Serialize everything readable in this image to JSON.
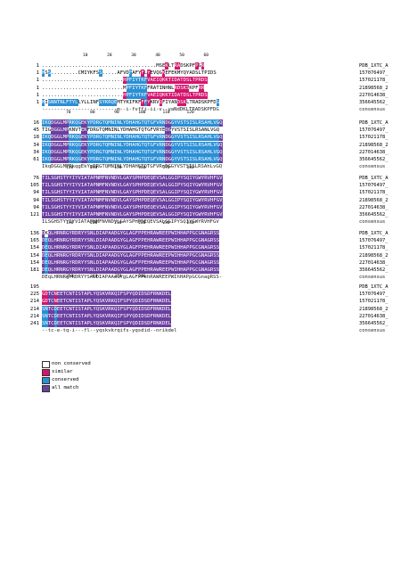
{
  "colors": {
    "non_conserved": "#ffffff",
    "similar": "#d4146c",
    "conserved": "#2a8fd6",
    "all_match": "#6a3fa0",
    "text_light": "#ffffff",
    "text_dark": "#000000"
  },
  "blocks": [
    {
      "ruler": "                 10        20        30        40        50        60",
      "rows": [
        {
          "num": "1",
          "seq": "......................................MSEKLTRADSKPFPGR",
          "label": "PDB_1XTC_A"
        },
        {
          "num": "1",
          "seq": "MSS.........CMIYKFSS.....AFVDFAFYFLYEVQGKEFEKMYQYADSLTPIDS",
          "label": "157076497_"
        },
        {
          "num": "1",
          "seq": "...........................HPFIYTKFVAEIQKKTIDATDSLTPRDS",
          "label": "157021178_"
        },
        {
          "num": "1",
          "seq": "...........................MPFIYTKFFRATINHNLRDSKSKPFRR",
          "label": "21898568_2"
        },
        {
          "num": "1",
          "seq": "...........................HPFIYTKFVAEIQKKTIDATDSLTPRDS",
          "label": "227014638_"
        },
        {
          "num": "1",
          "seq": "MISNNTNLFTYLLYLLINFSYKRQEMTYKIFKFFFYKRVQFIYANDSKLTRADSKPFDG",
          "label": "356645562_"
        },
        {
          "num": "",
          "seq": "-------------------------m--i-fvffi-ii-v--yaNdDKLTRADSKPFDG",
          "label": "consensus",
          "cons": true
        }
      ]
    },
    {
      "ruler": "          70        80        90        100       110       120",
      "rows": [
        {
          "num": "16",
          "seq": "IKQDGGLMPRKQGEKYPDRGTQMNINLYDHAHGTQTGFVRNDGGYVSTSISLRSAHLVGQ",
          "label": "PDB_1XTC_A"
        },
        {
          "num": "45",
          "seq": "TIGDGGLMPKNVTEKFDRGTQMNINLYDHAHGTQTGFVRYEDGYVSTSISLRSANLVGQ",
          "label": "157076497_"
        },
        {
          "num": "18",
          "seq": "IKQDGGLMPRKQGEKYPDRGTQMNINLYDHAHGTQTGFVRNDGGYVSTSISLRSAHLVGQ",
          "label": "157021178_"
        },
        {
          "num": "34",
          "seq": "IKQDGGLMPRKQGEKYPDRGTQMNINLYDHAHGTQTGFVRNDGGYVSTSISLRSAHLVGQ",
          "label": "21898568_2"
        },
        {
          "num": "34",
          "seq": "IKQDGGLMPRKQGEKYPDRGTQMNINLYDHAHGTQTGFVRNDGGYVSTSISLRSAHLVGQ",
          "label": "227014638_"
        },
        {
          "num": "61",
          "seq": "IKQDGGLMPRKQGEKYPDRGTQMNINLYDHAHGTQTGFVRNDGGYVSTSISLRSAHLVGQ",
          "label": "356645562_"
        },
        {
          "num": "",
          "seq": "IkqDGGLMPRkqgEkYpDRGTQMNINLYDHAHGTQTGFVRnDGGYVSTSISLRSAhLvGQ",
          "label": "consensus",
          "cons": true
        }
      ]
    },
    {
      "ruler": "          130       140       150       160       170       180",
      "rows": [
        {
          "num": "76",
          "seq": "TILSGHSTYYIYVIATAPNMFNVNDVLGAYSPHPDEQEVSALGGIPYSQIYGWYRVHFGV",
          "label": "PDB_1XTC_A"
        },
        {
          "num": "105",
          "seq": "TILSGHSTYYIYVIATAPNMFNVNDVLGAYSPHPDEQEVSALGGIPYSQIYGWYRVHFGV",
          "label": "157076497_"
        },
        {
          "num": "94",
          "seq": "TILSGHSTYYIYVIATAPNMFNVNDVLGAYSPHPDEQEVSALGGIPYSQIYGWYRVHFGV",
          "label": "157021178_"
        },
        {
          "num": "94",
          "seq": "TILSGHSTYYIYVIATAPNMFNVNDVLGAYSPHPDEQEVSALGGIPYSQIYGWYRVHFGV",
          "label": "21898568_2"
        },
        {
          "num": "94",
          "seq": "TILSGHSTYYIYVIATAPNMFNVNDVLGAYSPHPDEQEVSALGGIPYSQIYGWYRVHFGV",
          "label": "227014638_"
        },
        {
          "num": "121",
          "seq": "TILSGHSTYYIYVIATAPNMFNVNDVLGAYSPHPDEQEVSALGGIPYSQIYGWYRVHFGV",
          "label": "356645562_"
        },
        {
          "num": "",
          "seq": "ILSGHSTYYIYVIATAPNMFNVNDVLGAYSPHPDEQEVSALGGIPYSQIYGWYRVHFGV",
          "label": "consensus",
          "cons": true
        }
      ]
    },
    {
      "ruler": "          190       200       210       220       230       240",
      "rows": [
        {
          "num": "136",
          "seq": "DKQLHRNRGYRDRYYSNLDIAPAADGYGLAGFPPEHRAWREEPWIHHAPPGCGNAGRSS",
          "label": "PDB_1XTC_A"
        },
        {
          "num": "165",
          "seq": "DEQLHRNRGYRDRYYSNLDIAPAADGYGLAGFPPEHRAWREEPWIHHAPPGCGNAGRSS",
          "label": "157076497_"
        },
        {
          "num": "154",
          "seq": "DEQLHRNRGYRDRYYSNLDIAPAADGYGLAGFPPEHRAWREEPWIHHAPPGCGNAGRSS",
          "label": "157021178_"
        },
        {
          "num": "154",
          "seq": "DEQLHRNRGYRDRYYSNLDIAPAADGYGLAGFPPEHRAWREEPWIHHAPPGCGNAGRSS",
          "label": "21898568_2"
        },
        {
          "num": "154",
          "seq": "DEQLHRNRGYRDRYYSNLDIAPAADGYGLAGFPPEHRAWREEPWIHHAPPGCGNAGRSS",
          "label": "227014638_"
        },
        {
          "num": "181",
          "seq": "DEQLHRNRGYRDRYYSNLDIAPAADGYGLAGFPPEHRAWREEPWIHHAPPGCGNAGRSS",
          "label": "356645562_"
        },
        {
          "num": "",
          "seq": "DEqLHRNRgYRDRYYSnLDIAPAAdGYgLAGFPPehRAWREEPWIhHAPpGCGnagRSS-",
          "label": "consensus",
          "cons": true
        }
      ]
    },
    {
      "ruler": "          250       260       270       280",
      "rows": [
        {
          "num": "195",
          "seq": "",
          "label": "PDB_1XTC_A"
        },
        {
          "num": "225",
          "seq": "GDTCNEETCNTISTAPLYQSKVRKQIFSPYQDIDSDFRNKDEL",
          "label": "157076497_"
        },
        {
          "num": "214",
          "seq": "GDTCNEETCNTISTAPLYQSKVRKQIFSPYQDIDSDFRNKDEL",
          "label": "157021178_"
        },
        {
          "num": "214",
          "seq": "SNTCDEETCNTISTAPLYQSKVRKQIFSPYQDIDSDFRNKDEL",
          "label": "21898568_2"
        },
        {
          "num": "214",
          "seq": "SNTCDEETCNTISTAPLYQSKVRKQIFSPYQDIDSDFRNKDEL",
          "label": "227014638_"
        },
        {
          "num": "241",
          "seq": "SNTCDEETCNTISTAPLYQSKVRKQIFSPYQDIDSDFRNKDEL",
          "label": "356645562_"
        },
        {
          "num": "",
          "seq": "--tc-e-tq-i---fl--yqskvkrqifs-yqsdid--nrikdel",
          "label": "consensus",
          "cons": true
        }
      ]
    }
  ],
  "legend": [
    {
      "label": "non conserved",
      "color": "#ffffff"
    },
    {
      "label": "similar",
      "color": "#d4146c"
    },
    {
      "label": "conserved",
      "color": "#2a8fd6"
    },
    {
      "label": "all match",
      "color": "#6a3fa0"
    }
  ]
}
